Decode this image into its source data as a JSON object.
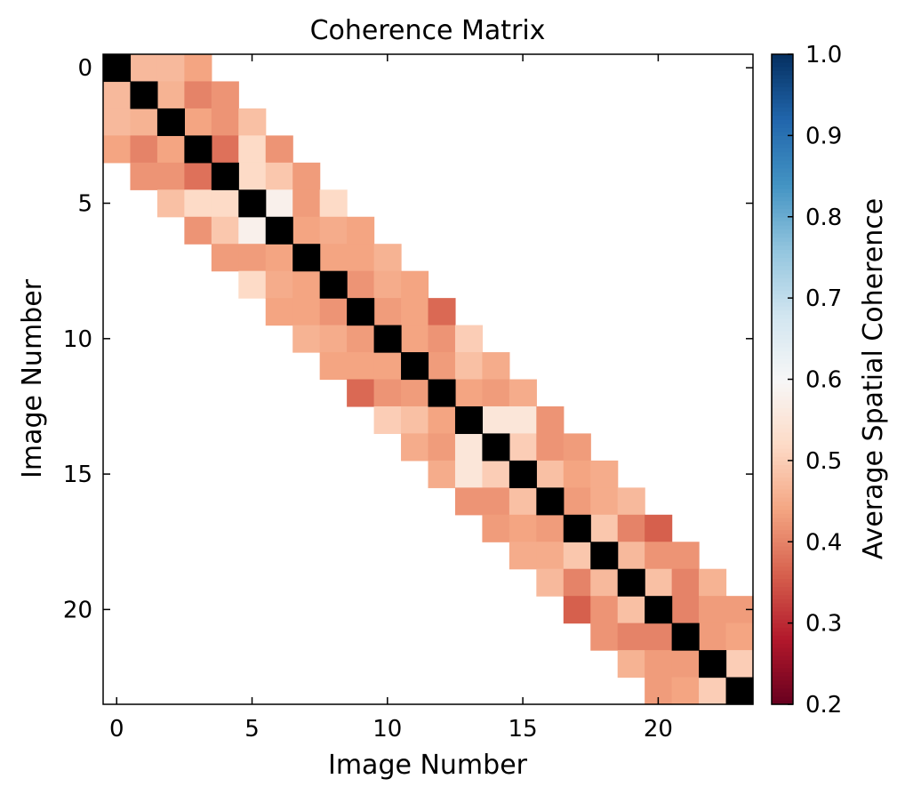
{
  "chart_data": {
    "type": "heatmap",
    "title": "Coherence Matrix",
    "xlabel": "Image Number",
    "ylabel": "Image Number",
    "n": 24,
    "x_ticks": [
      0,
      5,
      10,
      15,
      20
    ],
    "y_ticks": [
      0,
      5,
      10,
      15,
      20
    ],
    "x_tick_labels": [
      "0",
      "5",
      "10",
      "15",
      "20"
    ],
    "y_tick_labels": [
      "0",
      "5",
      "10",
      "15",
      "20"
    ],
    "diagonal_color": "#000000",
    "cells": [
      [
        0,
        1,
        0.47
      ],
      [
        0,
        2,
        0.47
      ],
      [
        0,
        3,
        0.44
      ],
      [
        1,
        2,
        0.46
      ],
      [
        1,
        3,
        0.4
      ],
      [
        1,
        4,
        0.42
      ],
      [
        2,
        3,
        0.44
      ],
      [
        2,
        4,
        0.42
      ],
      [
        2,
        5,
        0.48
      ],
      [
        3,
        4,
        0.38
      ],
      [
        3,
        5,
        0.52
      ],
      [
        3,
        6,
        0.42
      ],
      [
        4,
        5,
        0.52
      ],
      [
        4,
        6,
        0.49
      ],
      [
        4,
        7,
        0.43
      ],
      [
        5,
        6,
        0.58
      ],
      [
        5,
        7,
        0.43
      ],
      [
        5,
        8,
        0.52
      ],
      [
        6,
        7,
        0.44
      ],
      [
        6,
        8,
        0.45
      ],
      [
        6,
        9,
        0.44
      ],
      [
        7,
        8,
        0.44
      ],
      [
        7,
        9,
        0.44
      ],
      [
        7,
        10,
        0.46
      ],
      [
        8,
        9,
        0.42
      ],
      [
        8,
        10,
        0.45
      ],
      [
        8,
        11,
        0.44
      ],
      [
        9,
        10,
        0.43
      ],
      [
        9,
        11,
        0.44
      ],
      [
        9,
        12,
        0.37
      ],
      [
        10,
        11,
        0.44
      ],
      [
        10,
        12,
        0.42
      ],
      [
        10,
        13,
        0.5
      ],
      [
        11,
        12,
        0.43
      ],
      [
        11,
        13,
        0.48
      ],
      [
        11,
        14,
        0.45
      ],
      [
        12,
        13,
        0.44
      ],
      [
        12,
        14,
        0.43
      ],
      [
        12,
        15,
        0.45
      ],
      [
        13,
        14,
        0.55
      ],
      [
        13,
        15,
        0.55
      ],
      [
        13,
        16,
        0.42
      ],
      [
        14,
        15,
        0.5
      ],
      [
        14,
        16,
        0.42
      ],
      [
        14,
        17,
        0.43
      ],
      [
        15,
        16,
        0.48
      ],
      [
        15,
        17,
        0.44
      ],
      [
        15,
        18,
        0.45
      ],
      [
        16,
        17,
        0.43
      ],
      [
        16,
        18,
        0.45
      ],
      [
        16,
        19,
        0.47
      ],
      [
        17,
        18,
        0.49
      ],
      [
        17,
        19,
        0.4
      ],
      [
        17,
        20,
        0.36
      ],
      [
        18,
        19,
        0.47
      ],
      [
        18,
        20,
        0.42
      ],
      [
        18,
        21,
        0.42
      ],
      [
        19,
        20,
        0.48
      ],
      [
        19,
        21,
        0.4
      ],
      [
        19,
        22,
        0.46
      ],
      [
        20,
        21,
        0.4
      ],
      [
        20,
        22,
        0.43
      ],
      [
        20,
        23,
        0.43
      ],
      [
        21,
        22,
        0.43
      ],
      [
        21,
        23,
        0.44
      ],
      [
        22,
        23,
        0.5
      ]
    ],
    "colorbar": {
      "label": "Average Spatial Coherence",
      "min": 0.2,
      "max": 1.0,
      "ticks": [
        0.2,
        0.3,
        0.4,
        0.5,
        0.6,
        0.7,
        0.8,
        0.9,
        1.0
      ],
      "tick_labels": [
        "0.2",
        "0.3",
        "0.4",
        "0.5",
        "0.6",
        "0.7",
        "0.8",
        "0.9",
        "1.0"
      ],
      "colormap": "RdBu",
      "masked_range": [
        0.7,
        0.7
      ]
    },
    "grid": false
  }
}
